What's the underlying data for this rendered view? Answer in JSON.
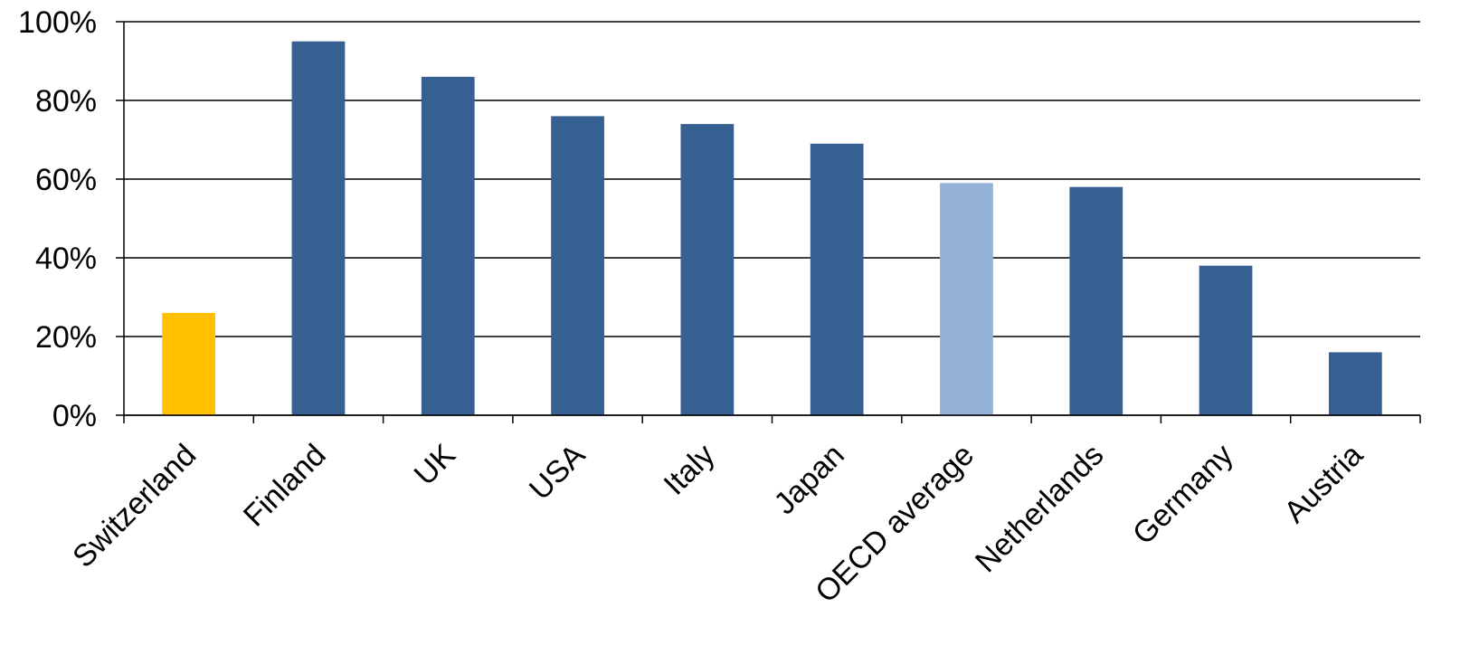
{
  "chart_data": {
    "type": "bar",
    "categories": [
      "Switzerland",
      "Finland",
      "UK",
      "USA",
      "Italy",
      "Japan",
      "OECD average",
      "Netherlands",
      "Germany",
      "Austria"
    ],
    "values": [
      26,
      95,
      86,
      76,
      74,
      69,
      59,
      58,
      38,
      16
    ],
    "ylim": [
      0,
      100
    ],
    "yticks": [
      "0%",
      "20%",
      "40%",
      "60%",
      "80%",
      "100%"
    ],
    "ytick_values": [
      0,
      20,
      40,
      60,
      80,
      100
    ],
    "grid": true,
    "colors": [
      "#FFC000",
      "#376092",
      "#376092",
      "#376092",
      "#376092",
      "#376092",
      "#95B3D7",
      "#376092",
      "#376092",
      "#376092"
    ]
  }
}
